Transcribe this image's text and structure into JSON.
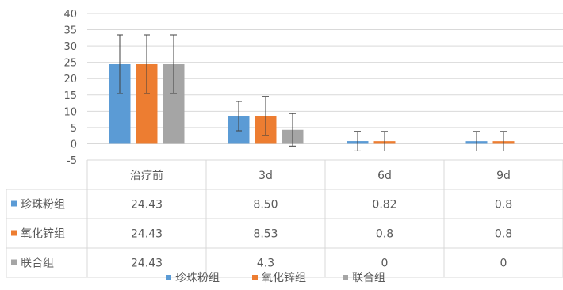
{
  "chart_data": {
    "type": "bar",
    "categories": [
      "治疗前",
      "3d",
      "6d",
      "9d"
    ],
    "ylim": [
      -5,
      40
    ],
    "yticks": [
      -5,
      0,
      5,
      10,
      15,
      20,
      25,
      30,
      35,
      40
    ],
    "gridlines": true,
    "legend_position": "bottom",
    "error_bars": true,
    "series": [
      {
        "name": "珍珠粉组",
        "color": "#5B9BD5",
        "values": [
          24.43,
          8.5,
          0.82,
          0.8
        ],
        "value_labels": [
          "24.43",
          "8.50",
          "0.82",
          "0.8"
        ],
        "errors": [
          9,
          4.5,
          3,
          3
        ]
      },
      {
        "name": "氧化锌组",
        "color": "#ED7D31",
        "values": [
          24.43,
          8.53,
          0.8,
          0.8
        ],
        "value_labels": [
          "24.43",
          "8.53",
          "0.8",
          "0.8"
        ],
        "errors": [
          9,
          6,
          3,
          3
        ]
      },
      {
        "name": "联合组",
        "color": "#A5A5A5",
        "values": [
          24.43,
          4.3,
          0,
          0
        ],
        "value_labels": [
          "24.43",
          "4.3",
          "0",
          "0"
        ],
        "errors": [
          9,
          5,
          0,
          0
        ]
      }
    ]
  }
}
